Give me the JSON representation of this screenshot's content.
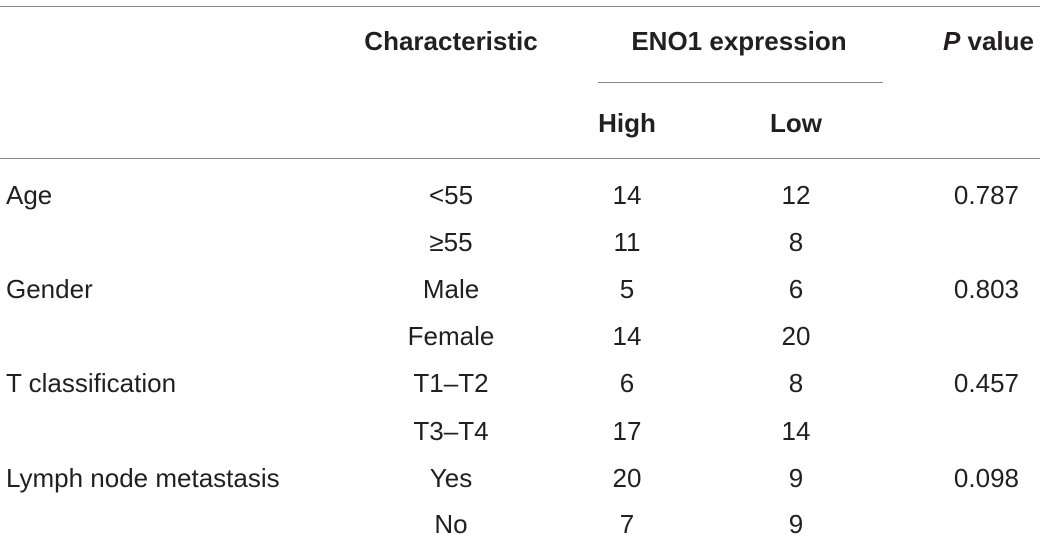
{
  "table": {
    "headers": {
      "characteristic": "Characteristic",
      "group": "ENO1 expression",
      "p_value_italic": "P",
      "p_value_rest": " value",
      "high": "High",
      "low": "Low"
    },
    "rows": [
      {
        "variable": "Age",
        "category": "<55",
        "high": "14",
        "low": "12",
        "p": "0.787"
      },
      {
        "variable": "",
        "category": "≥55",
        "high": "11",
        "low": "8",
        "p": ""
      },
      {
        "variable": "Gender",
        "category": "Male",
        "high": "5",
        "low": "6",
        "p": "0.803"
      },
      {
        "variable": "",
        "category": "Female",
        "high": "14",
        "low": "20",
        "p": ""
      },
      {
        "variable": "T classification",
        "category": "T1–T2",
        "high": "6",
        "low": "8",
        "p": "0.457"
      },
      {
        "variable": "",
        "category": "T3–T4",
        "high": "17",
        "low": "14",
        "p": ""
      },
      {
        "variable": "Lymph node metastasis",
        "category": "Yes",
        "high": "20",
        "low": "9",
        "p": "0.098"
      },
      {
        "variable": "",
        "category": "No",
        "high": "7",
        "low": "9",
        "p": ""
      }
    ]
  }
}
